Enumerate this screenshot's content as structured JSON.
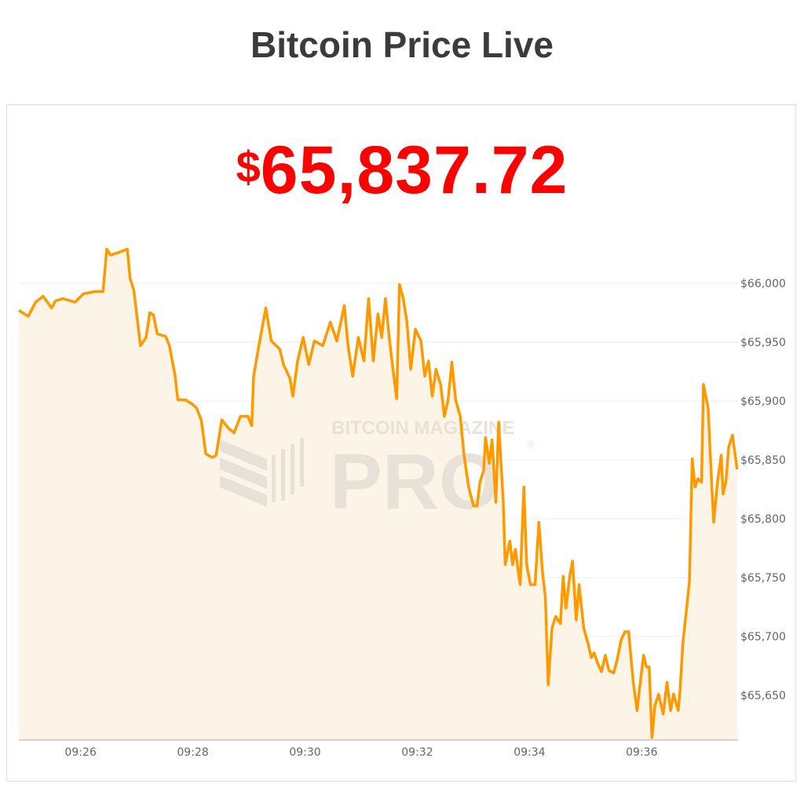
{
  "header": {
    "title": "Bitcoin Price Live"
  },
  "price": {
    "currency_symbol": "$",
    "value": "65,837.72",
    "color": "#ff0000"
  },
  "watermark": {
    "line1": "BITCOIN MAGAZINE",
    "line2": "PRO",
    "mark": "®"
  },
  "chart_data": {
    "type": "area",
    "title": "",
    "xlabel": "",
    "ylabel": "",
    "line_color": "#ff9900",
    "fill_color": "#fdf4e8",
    "grid": true,
    "y_axis_position": "right",
    "ylim": [
      65612,
      66034
    ],
    "xlim": [
      "09:24:54",
      "09:37:43"
    ],
    "y_ticks": [
      66000,
      65950,
      65900,
      65850,
      65800,
      65750,
      65700,
      65650
    ],
    "y_tick_labels": [
      "$66,000",
      "$65,950",
      "$65,900",
      "$65,850",
      "$65,800",
      "$65,750",
      "$65,700",
      "$65,650"
    ],
    "x_ticks": [
      "09:26",
      "09:28",
      "09:30",
      "09:32",
      "09:34",
      "09:36"
    ],
    "x": [
      "09:24:54",
      "09:25:04",
      "09:25:12",
      "09:25:20",
      "09:25:29",
      "09:25:33",
      "09:25:41",
      "09:25:54",
      "09:26:03",
      "09:26:15",
      "09:26:24",
      "09:26:28",
      "09:26:32",
      "09:26:40",
      "09:26:50",
      "09:26:53",
      "09:26:57",
      "09:27:04",
      "09:27:10",
      "09:27:14",
      "09:27:18",
      "09:27:22",
      "09:27:31",
      "09:27:35",
      "09:27:41",
      "09:27:44",
      "09:27:52",
      "09:28:00",
      "09:28:04",
      "09:28:09",
      "09:28:14",
      "09:28:21",
      "09:28:25",
      "09:28:31",
      "09:28:38",
      "09:28:44",
      "09:28:51",
      "09:28:59",
      "09:29:03",
      "09:29:05",
      "09:29:10",
      "09:29:18",
      "09:29:24",
      "09:29:33",
      "09:29:37",
      "09:29:44",
      "09:29:47",
      "09:29:52",
      "09:29:58",
      "09:30:04",
      "09:30:10",
      "09:30:19",
      "09:30:27",
      "09:30:34",
      "09:30:42",
      "09:30:46",
      "09:30:51",
      "09:30:57",
      "09:31:03",
      "09:31:08",
      "09:31:13",
      "09:31:18",
      "09:31:22",
      "09:31:26",
      "09:31:30",
      "09:31:34",
      "09:31:38",
      "09:31:41",
      "09:31:45",
      "09:31:49",
      "09:31:53",
      "09:31:58",
      "09:32:04",
      "09:32:08",
      "09:32:12",
      "09:32:16",
      "09:32:20",
      "09:32:25",
      "09:32:29",
      "09:32:33",
      "09:32:37",
      "09:32:41",
      "09:32:46",
      "09:32:50",
      "09:32:55",
      "09:33:00",
      "09:33:04",
      "09:33:07",
      "09:33:11",
      "09:33:13",
      "09:33:17",
      "09:33:20",
      "09:33:24",
      "09:33:27",
      "09:33:32",
      "09:33:34",
      "09:33:39",
      "09:33:42",
      "09:33:45",
      "09:33:49",
      "09:33:50",
      "09:33:54",
      "09:33:57",
      "09:34:01",
      "09:34:06",
      "09:34:10",
      "09:34:14",
      "09:34:17",
      "09:34:20",
      "09:34:24",
      "09:34:28",
      "09:34:33",
      "09:34:36",
      "09:34:39",
      "09:34:43",
      "09:34:46",
      "09:34:50",
      "09:34:53",
      "09:34:58",
      "09:35:03",
      "09:35:06",
      "09:35:09",
      "09:35:13",
      "09:35:17",
      "09:35:21",
      "09:35:25",
      "09:35:30",
      "09:35:34",
      "09:35:38",
      "09:35:42",
      "09:35:46",
      "09:35:51",
      "09:35:55",
      "09:35:57",
      "09:36:02",
      "09:36:05",
      "09:36:08",
      "09:36:11",
      "09:36:14",
      "09:36:18",
      "09:36:23",
      "09:36:27",
      "09:36:31",
      "09:36:34",
      "09:36:39",
      "09:36:41",
      "09:36:44",
      "09:36:48",
      "09:36:51",
      "09:36:54",
      "09:36:57",
      "09:37:00",
      "09:37:04",
      "09:37:06",
      "09:37:11",
      "09:37:15",
      "09:37:17",
      "09:37:21",
      "09:37:25",
      "09:37:27",
      "09:37:30",
      "09:37:33",
      "09:37:37",
      "09:37:42"
    ],
    "y": [
      65977,
      65972,
      65984,
      65989,
      65979,
      65985,
      65987,
      65984,
      65991,
      65993,
      65993,
      66029,
      66024,
      66026,
      66029,
      66004,
      65994,
      65947,
      65954,
      65975,
      65973,
      65957,
      65955,
      65947,
      65922,
      65901,
      65901,
      65897,
      65894,
      65884,
      65855,
      65852,
      65854,
      65884,
      65877,
      65873,
      65887,
      65887,
      65879,
      65921,
      65944,
      65979,
      65951,
      65944,
      65931,
      65919,
      65904,
      65934,
      65954,
      65931,
      65951,
      65947,
      65967,
      65951,
      65981,
      65947,
      65921,
      65954,
      65934,
      65987,
      65934,
      65974,
      65954,
      65987,
      65954,
      65927,
      65902,
      65999,
      65987,
      65967,
      65927,
      65961,
      65951,
      65921,
      65934,
      65904,
      65927,
      65914,
      65887,
      65901,
      65933,
      65901,
      65887,
      65854,
      65827,
      65811,
      65811,
      65831,
      65841,
      65869,
      65847,
      65867,
      65814,
      65882,
      65814,
      65761,
      65781,
      65761,
      65774,
      65749,
      65744,
      65827,
      65761,
      65744,
      65744,
      65797,
      65754,
      65734,
      65659,
      65707,
      65717,
      65711,
      65751,
      65724,
      65751,
      65764,
      65714,
      65744,
      65707,
      65693,
      65682,
      65686,
      65677,
      65670,
      65684,
      65671,
      65669,
      65681,
      65697,
      65704,
      65704,
      65661,
      65637,
      65651,
      65684,
      65674,
      65674,
      65614,
      65641,
      65651,
      65634,
      65661,
      65637,
      65651,
      65637,
      65654,
      65694,
      65724,
      65747,
      65851,
      65827,
      65834,
      65831,
      65914,
      65894,
      65827,
      65797,
      65831,
      65854,
      65821,
      65831,
      65861,
      65871,
      65842
    ]
  }
}
